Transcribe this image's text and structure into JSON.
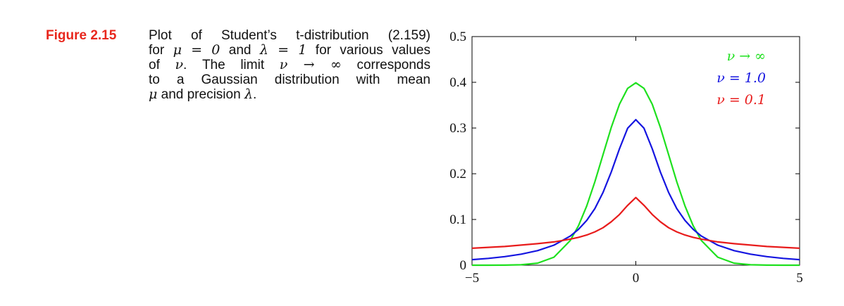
{
  "caption": {
    "figure_label": "Figure 2.15",
    "line1": "Plot of Student’s t-distribution (2.159)",
    "line2_pre": "for ",
    "line2_mu": "μ = 0",
    "line2_mid": " and ",
    "line2_lambda": "λ = 1",
    "line2_post": " for various values",
    "line3_pre": "of ",
    "line3_nu": "ν",
    "line3_mid": ". The limit ",
    "line3_limit": "ν → ∞",
    "line3_post": " corresponds",
    "line4": "to a Gaussian distribution with mean",
    "line5_mu": "μ",
    "line5_mid": " and precision ",
    "line5_lambda": "λ",
    "line5_post": "."
  },
  "chart_data": {
    "type": "line",
    "title": "",
    "xlabel": "",
    "ylabel": "",
    "xlim": [
      -5,
      5
    ],
    "ylim": [
      0,
      0.5
    ],
    "grid": false,
    "legend_position": "top-right",
    "x_ticks": [
      -5,
      0,
      5
    ],
    "x_tick_labels": [
      "−5",
      "0",
      "5"
    ],
    "y_ticks": [
      0,
      0.1,
      0.2,
      0.3,
      0.4,
      0.5
    ],
    "y_tick_labels": [
      "0",
      "0.1",
      "0.2",
      "0.3",
      "0.4",
      "0.5"
    ],
    "x": [
      -5,
      -4.5,
      -4,
      -3.5,
      -3,
      -2.5,
      -2,
      -1.75,
      -1.5,
      -1.25,
      -1,
      -0.75,
      -0.5,
      -0.25,
      0,
      0.25,
      0.5,
      0.75,
      1,
      1.25,
      1.5,
      1.75,
      2,
      2.5,
      3,
      3.5,
      4,
      4.5,
      5
    ],
    "series": [
      {
        "name": "ν → ∞",
        "color": "#1ee01e",
        "values": [
          0.0,
          0.0,
          0.0001,
          0.0009,
          0.0044,
          0.0175,
          0.054,
          0.0863,
          0.1295,
          0.1826,
          0.242,
          0.3011,
          0.3521,
          0.3867,
          0.3989,
          0.3867,
          0.3521,
          0.3011,
          0.242,
          0.1826,
          0.1295,
          0.0863,
          0.054,
          0.0175,
          0.0044,
          0.0009,
          0.0001,
          0.0,
          0.0
        ]
      },
      {
        "name": "ν = 1.0",
        "color": "#1515e0",
        "values": [
          0.0122,
          0.0149,
          0.0187,
          0.0241,
          0.0318,
          0.0439,
          0.0637,
          0.0785,
          0.0979,
          0.1239,
          0.1592,
          0.2037,
          0.2546,
          0.2996,
          0.3183,
          0.2996,
          0.2546,
          0.2037,
          0.1592,
          0.1239,
          0.0979,
          0.0785,
          0.0637,
          0.0439,
          0.0318,
          0.0241,
          0.0187,
          0.0149,
          0.0122
        ]
      },
      {
        "name": "ν = 0.1",
        "color": "#e81c1c",
        "values": [
          0.037,
          0.039,
          0.041,
          0.044,
          0.047,
          0.051,
          0.057,
          0.061,
          0.066,
          0.073,
          0.082,
          0.095,
          0.111,
          0.131,
          0.148,
          0.131,
          0.111,
          0.095,
          0.082,
          0.073,
          0.066,
          0.061,
          0.057,
          0.051,
          0.047,
          0.044,
          0.041,
          0.039,
          0.037
        ]
      }
    ]
  }
}
